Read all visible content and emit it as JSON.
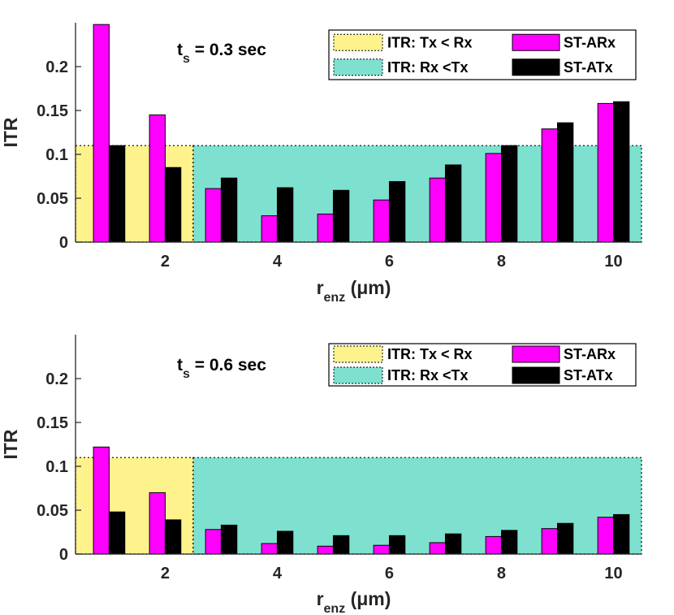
{
  "colors": {
    "region_tx_lt_rx": "#fdf28c",
    "region_rx_lt_tx": "#7ee1d0",
    "st_arx": "#ff00ff",
    "st_atx": "#000000",
    "axis": "#262626"
  },
  "chart_data": [
    {
      "type": "bar",
      "title": "",
      "annotation": {
        "main": "t",
        "sub": "s",
        "rest": " = 0.3 sec"
      },
      "xlabel": {
        "main": "r",
        "sub": "enz",
        "rest": " (μm)"
      },
      "ylabel": "ITR",
      "xlim": [
        0.4,
        10.5
      ],
      "ylim": [
        0,
        0.25
      ],
      "xticks": [
        "2",
        "4",
        "6",
        "8",
        "10"
      ],
      "xtick_values": [
        2,
        4,
        6,
        8,
        10
      ],
      "yticks": [
        "0",
        "0.05",
        "0.1",
        "0.15",
        "0.2"
      ],
      "ytick_values": [
        0,
        0.05,
        0.1,
        0.15,
        0.2
      ],
      "x": [
        1,
        2,
        3,
        4,
        5,
        6,
        7,
        8,
        9,
        10
      ],
      "regions": [
        {
          "label": "ITR: Tx < Rx",
          "x_from": 0.4,
          "x_to": 2.5,
          "y_top": 0.11,
          "color_key": "region_tx_lt_rx"
        },
        {
          "label": "ITR: Rx <Tx",
          "x_from": 2.5,
          "x_to": 10.5,
          "y_top": 0.11,
          "color_key": "region_rx_lt_tx"
        }
      ],
      "series": [
        {
          "name": "ST-ARx",
          "color_key": "st_arx",
          "values": [
            0.248,
            0.145,
            0.061,
            0.03,
            0.032,
            0.048,
            0.073,
            0.101,
            0.129,
            0.158
          ]
        },
        {
          "name": "ST-ATx",
          "color_key": "st_atx",
          "values": [
            0.11,
            0.085,
            0.073,
            0.062,
            0.059,
            0.069,
            0.088,
            0.11,
            0.136,
            0.16
          ]
        }
      ]
    },
    {
      "type": "bar",
      "title": "",
      "annotation": {
        "main": "t",
        "sub": "s",
        "rest": " = 0.6 sec"
      },
      "xlabel": {
        "main": "r",
        "sub": "enz",
        "rest": " (μm)"
      },
      "ylabel": "ITR",
      "xlim": [
        0.4,
        10.5
      ],
      "ylim": [
        0,
        0.25
      ],
      "xticks": [
        "2",
        "4",
        "6",
        "8",
        "10"
      ],
      "xtick_values": [
        2,
        4,
        6,
        8,
        10
      ],
      "yticks": [
        "0",
        "0.05",
        "0.1",
        "0.15",
        "0.2"
      ],
      "ytick_values": [
        0,
        0.05,
        0.1,
        0.15,
        0.2
      ],
      "x": [
        1,
        2,
        3,
        4,
        5,
        6,
        7,
        8,
        9,
        10
      ],
      "regions": [
        {
          "label": "ITR: Tx < Rx",
          "x_from": 0.4,
          "x_to": 2.5,
          "y_top": 0.11,
          "color_key": "region_tx_lt_rx"
        },
        {
          "label": "ITR: Rx <Tx",
          "x_from": 2.5,
          "x_to": 10.5,
          "y_top": 0.11,
          "color_key": "region_rx_lt_tx"
        }
      ],
      "series": [
        {
          "name": "ST-ARx",
          "color_key": "st_arx",
          "values": [
            0.122,
            0.07,
            0.028,
            0.012,
            0.009,
            0.01,
            0.013,
            0.02,
            0.029,
            0.042
          ]
        },
        {
          "name": "ST-ATx",
          "color_key": "st_atx",
          "values": [
            0.048,
            0.039,
            0.033,
            0.026,
            0.021,
            0.021,
            0.023,
            0.027,
            0.035,
            0.045
          ]
        }
      ]
    }
  ]
}
